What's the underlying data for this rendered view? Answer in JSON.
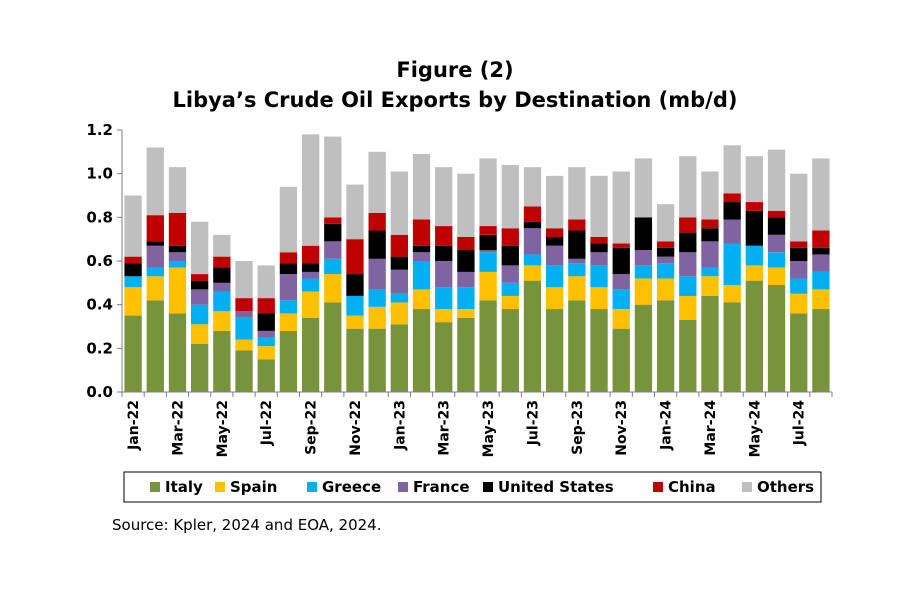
{
  "chart_data": {
    "type": "bar",
    "stacked": true,
    "title": "Figure (2)",
    "subtitle": "Libya’s Crude Oil Exports by Destination (mb/d)",
    "xlabel": "",
    "ylabel": "",
    "ylim": [
      0,
      1.2
    ],
    "yticks": [
      "0.0",
      "0.2",
      "0.4",
      "0.6",
      "0.8",
      "1.0",
      "1.2"
    ],
    "grid": false,
    "legend_position": "bottom",
    "categories": [
      "Jan-22",
      "Feb-22",
      "Mar-22",
      "Apr-22",
      "May-22",
      "Jun-22",
      "Jul-22",
      "Aug-22",
      "Sep-22",
      "Oct-22",
      "Nov-22",
      "Dec-22",
      "Jan-23",
      "Feb-23",
      "Mar-23",
      "Apr-23",
      "May-23",
      "Jun-23",
      "Jul-23",
      "Aug-23",
      "Sep-23",
      "Oct-23",
      "Nov-23",
      "Dec-23",
      "Jan-24",
      "Feb-24",
      "Mar-24",
      "Apr-24",
      "May-24",
      "Jun-24",
      "Jul-24",
      "Aug-24"
    ],
    "tick_labels": [
      "Jan-22",
      "",
      "Mar-22",
      "",
      "May-22",
      "",
      "Jul-22",
      "",
      "Sep-22",
      "",
      "Nov-22",
      "",
      "Jan-23",
      "",
      "Mar-23",
      "",
      "May-23",
      "",
      "Jul-23",
      "",
      "Sep-23",
      "",
      "Nov-23",
      "",
      "Jan-24",
      "",
      "Mar-24",
      "",
      "May-24",
      "",
      "Jul-24",
      ""
    ],
    "series": [
      {
        "name": "Italy",
        "color": "#77933c",
        "values": [
          0.35,
          0.42,
          0.36,
          0.22,
          0.28,
          0.19,
          0.15,
          0.28,
          0.34,
          0.41,
          0.29,
          0.29,
          0.31,
          0.38,
          0.32,
          0.34,
          0.42,
          0.38,
          0.51,
          0.38,
          0.42,
          0.38,
          0.29,
          0.4,
          0.42,
          0.33,
          0.44,
          0.41,
          0.51,
          0.49,
          0.36,
          0.38
        ]
      },
      {
        "name": "Spain",
        "color": "#ffc000",
        "values": [
          0.13,
          0.11,
          0.21,
          0.09,
          0.09,
          0.05,
          0.06,
          0.08,
          0.12,
          0.13,
          0.06,
          0.1,
          0.1,
          0.09,
          0.06,
          0.04,
          0.13,
          0.06,
          0.07,
          0.1,
          0.11,
          0.1,
          0.09,
          0.12,
          0.1,
          0.11,
          0.09,
          0.08,
          0.07,
          0.08,
          0.09,
          0.09
        ]
      },
      {
        "name": "Greece",
        "color": "#00b0f0",
        "values": [
          0.05,
          0.04,
          0.03,
          0.09,
          0.09,
          0.1,
          0.04,
          0.06,
          0.06,
          0.07,
          0.09,
          0.08,
          0.04,
          0.13,
          0.1,
          0.1,
          0.09,
          0.06,
          0.05,
          0.1,
          0.06,
          0.1,
          0.09,
          0.06,
          0.07,
          0.09,
          0.04,
          0.19,
          0.09,
          0.07,
          0.07,
          0.08
        ]
      },
      {
        "name": "France",
        "color": "#8064a2",
        "values": [
          0.0,
          0.1,
          0.04,
          0.07,
          0.04,
          0.03,
          0.03,
          0.12,
          0.03,
          0.08,
          0.0,
          0.14,
          0.11,
          0.04,
          0.12,
          0.07,
          0.01,
          0.08,
          0.12,
          0.09,
          0.02,
          0.06,
          0.07,
          0.07,
          0.03,
          0.11,
          0.12,
          0.11,
          0.0,
          0.08,
          0.08,
          0.08
        ]
      },
      {
        "name": "United States",
        "color": "#000000",
        "values": [
          0.06,
          0.02,
          0.03,
          0.04,
          0.07,
          0.0,
          0.08,
          0.05,
          0.04,
          0.08,
          0.1,
          0.13,
          0.06,
          0.03,
          0.07,
          0.1,
          0.07,
          0.09,
          0.03,
          0.04,
          0.13,
          0.04,
          0.12,
          0.15,
          0.04,
          0.09,
          0.06,
          0.08,
          0.16,
          0.08,
          0.06,
          0.03
        ]
      },
      {
        "name": "China",
        "color": "#c00000",
        "values": [
          0.03,
          0.12,
          0.15,
          0.03,
          0.05,
          0.06,
          0.07,
          0.05,
          0.08,
          0.03,
          0.16,
          0.08,
          0.1,
          0.12,
          0.09,
          0.06,
          0.04,
          0.08,
          0.07,
          0.04,
          0.05,
          0.03,
          0.02,
          0.0,
          0.03,
          0.07,
          0.04,
          0.04,
          0.04,
          0.03,
          0.03,
          0.08
        ]
      },
      {
        "name": "Others",
        "color": "#bfbfbf",
        "values": [
          0.28,
          0.31,
          0.21,
          0.24,
          0.1,
          0.17,
          0.15,
          0.3,
          0.51,
          0.37,
          0.25,
          0.28,
          0.29,
          0.3,
          0.27,
          0.29,
          0.31,
          0.29,
          0.18,
          0.24,
          0.24,
          0.28,
          0.33,
          0.27,
          0.17,
          0.28,
          0.22,
          0.22,
          0.21,
          0.28,
          0.31,
          0.33
        ]
      }
    ]
  },
  "source": "Source: Kpler, 2024 and EOA, 2024."
}
